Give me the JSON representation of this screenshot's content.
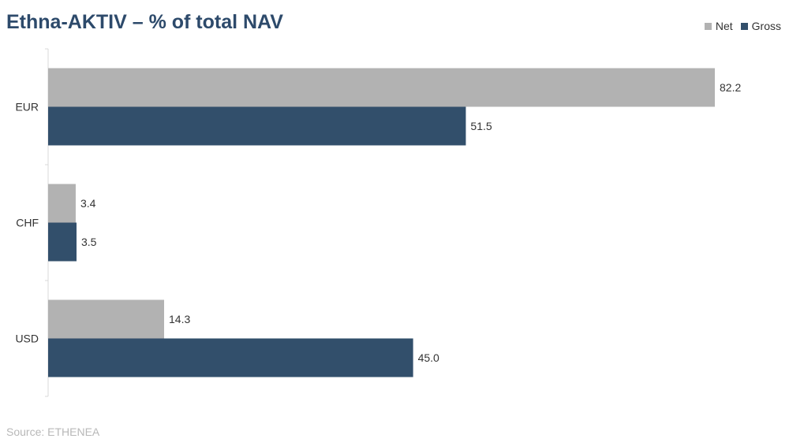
{
  "title": "Ethna-AKTIV – % of total NAV",
  "source": "Source: ETHENEA",
  "colors": {
    "net": "#b2b2b2",
    "gross": "#324f6b",
    "title": "#2d4a6b",
    "axis": "#d9d9d9"
  },
  "chart_data": {
    "type": "bar",
    "orientation": "horizontal",
    "title": "Ethna-AKTIV – % of total NAV",
    "categories": [
      "EUR",
      "CHF",
      "USD"
    ],
    "series": [
      {
        "name": "Net",
        "values": [
          82.2,
          3.4,
          14.3
        ]
      },
      {
        "name": "Gross",
        "values": [
          51.5,
          3.5,
          45.0
        ]
      }
    ],
    "xlim": [
      0,
      85
    ],
    "grid": false,
    "legend_position": "top-right",
    "data_labels": true
  }
}
